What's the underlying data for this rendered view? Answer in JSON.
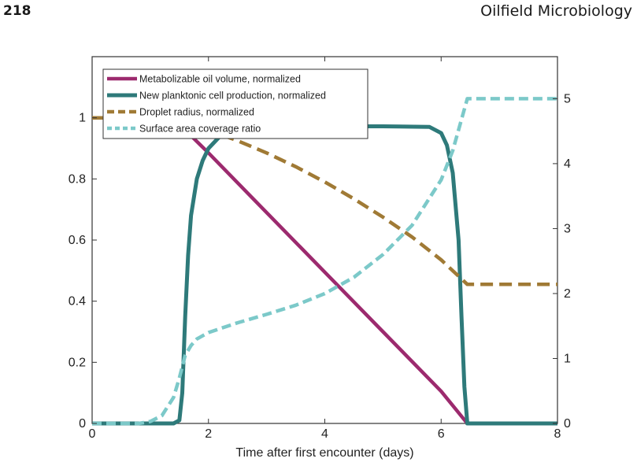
{
  "header": {
    "page_number": "218",
    "running_title": "Oilfield Microbiology"
  },
  "chart_data": {
    "type": "line",
    "title": "",
    "xlabel": "Time after first encounter (days)",
    "ylabel_left": "",
    "ylabel_right": "",
    "xlim": [
      0,
      8
    ],
    "ylim_left": [
      0,
      1.2
    ],
    "ylim_right": [
      0,
      5.647
    ],
    "x_ticks": [
      0,
      2,
      4,
      6,
      8
    ],
    "y_ticks_left": [
      0,
      0.2,
      0.4,
      0.6,
      0.8,
      1
    ],
    "y_ticks_right": [
      0,
      1,
      2,
      3,
      4,
      5
    ],
    "grid": false,
    "legend_position": "top-left",
    "series": [
      {
        "name": "Metabolizable oil volume, normalized",
        "axis": "left",
        "color": "#9c2a6e",
        "style": "solid",
        "x": [
          0,
          0.5,
          1.0,
          1.2,
          1.4,
          1.6,
          2,
          3,
          4,
          5,
          6,
          6.45,
          7,
          8
        ],
        "y": [
          1,
          1,
          1,
          0.998,
          0.99,
          0.96,
          0.885,
          0.69,
          0.495,
          0.3,
          0.105,
          0.0,
          0.0,
          0.0
        ]
      },
      {
        "name": "New planktonic cell production, normalized",
        "axis": "left",
        "color": "#2e7a7a",
        "style": "solid",
        "x": [
          0,
          1.4,
          1.5,
          1.55,
          1.6,
          1.65,
          1.7,
          1.8,
          1.9,
          2.0,
          2.2,
          2.5,
          3,
          4,
          5,
          5.8,
          6.0,
          6.1,
          6.2,
          6.3,
          6.35,
          6.4,
          6.45,
          7,
          8
        ],
        "y": [
          0,
          0,
          0.01,
          0.1,
          0.35,
          0.55,
          0.68,
          0.8,
          0.86,
          0.9,
          0.94,
          0.96,
          0.97,
          0.972,
          0.972,
          0.97,
          0.95,
          0.91,
          0.82,
          0.6,
          0.35,
          0.12,
          0.0,
          0.0,
          0.0
        ]
      },
      {
        "name": "Droplet radius, normalized",
        "axis": "left",
        "color": "#a07a35",
        "style": "dashed",
        "x": [
          0,
          0.5,
          1.0,
          1.5,
          2,
          2.5,
          3,
          3.5,
          4,
          4.5,
          5,
          5.5,
          6,
          6.45,
          7,
          8
        ],
        "y": [
          1,
          1,
          1,
          0.99,
          0.96,
          0.925,
          0.885,
          0.84,
          0.79,
          0.735,
          0.675,
          0.61,
          0.535,
          0.455,
          0.455,
          0.455
        ]
      },
      {
        "name": "Surface area coverage ratio",
        "axis": "right",
        "color": "#7cc9c9",
        "style": "dashed",
        "x": [
          0,
          0.8,
          1.0,
          1.2,
          1.4,
          1.5,
          1.6,
          1.7,
          1.8,
          2.0,
          2.5,
          3,
          3.5,
          4,
          4.5,
          5,
          5.5,
          6,
          6.2,
          6.45,
          7,
          8
        ],
        "y": [
          0,
          0,
          0.03,
          0.12,
          0.4,
          0.7,
          1.05,
          1.2,
          1.3,
          1.4,
          1.55,
          1.68,
          1.82,
          2.0,
          2.25,
          2.6,
          3.05,
          3.75,
          4.2,
          5.0,
          5.0,
          5.0
        ]
      }
    ]
  }
}
